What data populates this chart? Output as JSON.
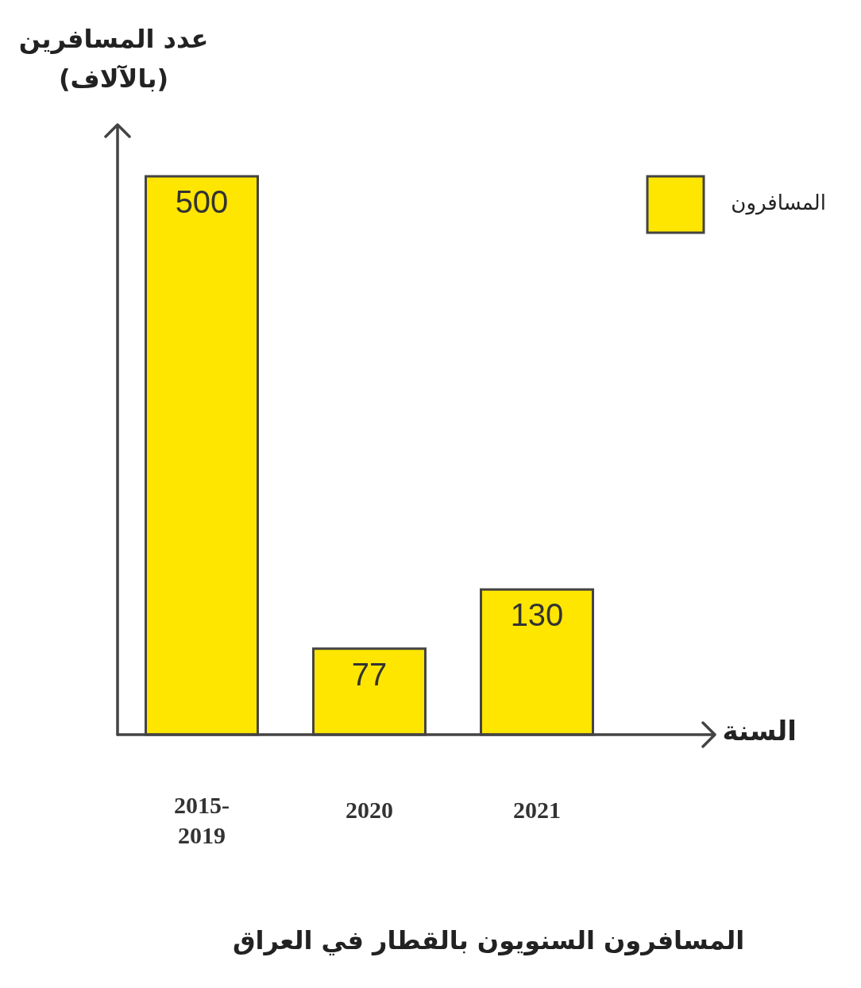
{
  "chart_data": {
    "type": "bar",
    "title": "المسافرون السنويون بالقطار في العراق",
    "xlabel": "السنة",
    "ylabel": "عدد المسافرين (بالآلاف)",
    "categories": [
      "2015-2019",
      "2020",
      "2021"
    ],
    "series": [
      {
        "name": "المسافرون",
        "color": "#ffe600",
        "values": [
          500,
          77,
          130
        ]
      }
    ],
    "data_labels": true,
    "legend": "top right"
  }
}
